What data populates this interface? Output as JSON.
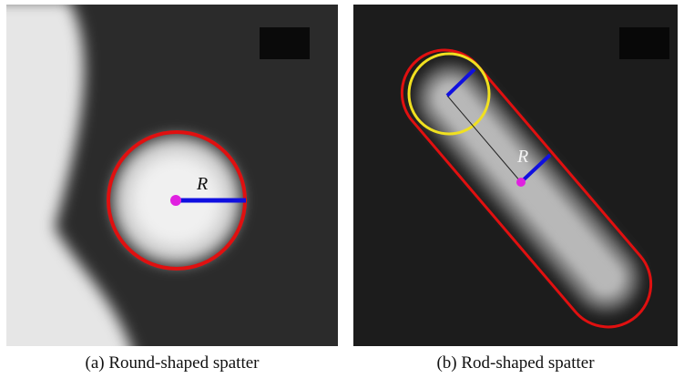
{
  "panels": [
    {
      "symbol": "R",
      "caption": "(a) Round-shaped spatter"
    },
    {
      "symbol": "R",
      "caption": "(b) Rod-shaped spatter"
    }
  ]
}
